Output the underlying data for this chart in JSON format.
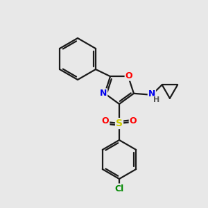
{
  "background_color": "#e8e8e8",
  "bond_color": "#1a1a1a",
  "atom_colors": {
    "O": "#ff0000",
    "N": "#0000ee",
    "S": "#cccc00",
    "Cl": "#008800",
    "H": "#555555",
    "C": "#1a1a1a"
  },
  "figsize": [
    3.0,
    3.0
  ],
  "dpi": 100,
  "lw": 1.6,
  "font_size": 9
}
